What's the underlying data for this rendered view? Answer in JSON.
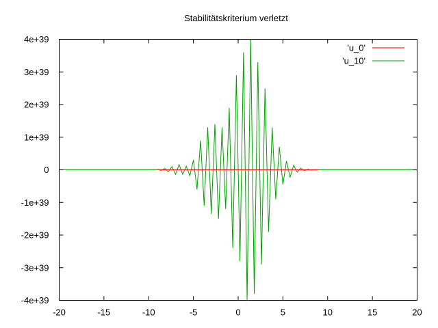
{
  "chart_data": {
    "type": "line",
    "title": "Stabilitätskriterium verletzt",
    "xlabel": "",
    "ylabel": "",
    "xlim": [
      -20,
      20
    ],
    "ylim": [
      -4e+39,
      4e+39
    ],
    "xticks": [
      -20,
      -15,
      -10,
      -5,
      0,
      5,
      10,
      15,
      20
    ],
    "xtick_labels": [
      "-20",
      "-15",
      "-10",
      "-5",
      "0",
      "5",
      "10",
      "15",
      "20"
    ],
    "yticks": [
      -4e+39,
      -3e+39,
      -2e+39,
      -1e+39,
      0,
      1e+39,
      2e+39,
      3e+39,
      4e+39
    ],
    "ytick_labels": [
      "-4e+39",
      "-3e+39",
      "-2e+39",
      "-1e+39",
      "0",
      "1e+39",
      "2e+39",
      "3e+39",
      "4e+39"
    ],
    "grid": false,
    "legend_position": "top-right",
    "series": [
      {
        "name": "'u_0'",
        "color": "#ff0000",
        "points": [
          [
            -9,
            0
          ],
          [
            9,
            0
          ]
        ]
      },
      {
        "name": "'u_10'",
        "color": "#00a000",
        "x": [
          -9,
          -8.6,
          -8.2,
          -7.8,
          -7.4,
          -7.0,
          -6.6,
          -6.2,
          -5.8,
          -5.4,
          -5.0,
          -4.6,
          -4.2,
          -3.8,
          -3.4,
          -3.0,
          -2.6,
          -2.2,
          -1.8,
          -1.4,
          -1.0,
          -0.6,
          -0.2,
          0.2,
          0.6,
          1.0,
          1.4,
          1.8,
          2.2,
          2.6,
          3.0,
          3.4,
          3.8,
          4.2,
          4.6,
          5.0,
          5.4,
          5.8,
          6.2,
          6.6,
          7.0,
          7.4,
          7.8,
          8.2,
          8.6,
          9.0
        ],
        "values": [
          1e+37,
          -2e+37,
          4e+37,
          -6e+37,
          1e+38,
          -1.4e+38,
          1.6e+38,
          -1.4e+38,
          1.1e+38,
          -1.8e+38,
          3e+38,
          -6e+38,
          9e+38,
          -1.1e+39,
          1.3e+39,
          -1.35e+39,
          1.4e+39,
          -1.5e+39,
          1.3e+39,
          -1.2e+39,
          1.9e+39,
          -2.4e+39,
          2.9e+39,
          -2.8e+39,
          3.6e+39,
          -4e+39,
          4e+39,
          -3.8e+39,
          3.3e+39,
          -2.9e+39,
          2.5e+39,
          -1.9e+39,
          1.3e+39,
          -9e+38,
          7e+38,
          -4.5e+38,
          2.7e+38,
          -2.3e+38,
          1.4e+38,
          -7e+37,
          5e+37,
          -3e+37,
          1.6e+37,
          -1e+37,
          5e+36,
          0
        ],
        "baseline": [
          [
            -20,
            0
          ],
          [
            20,
            0
          ]
        ]
      }
    ]
  }
}
